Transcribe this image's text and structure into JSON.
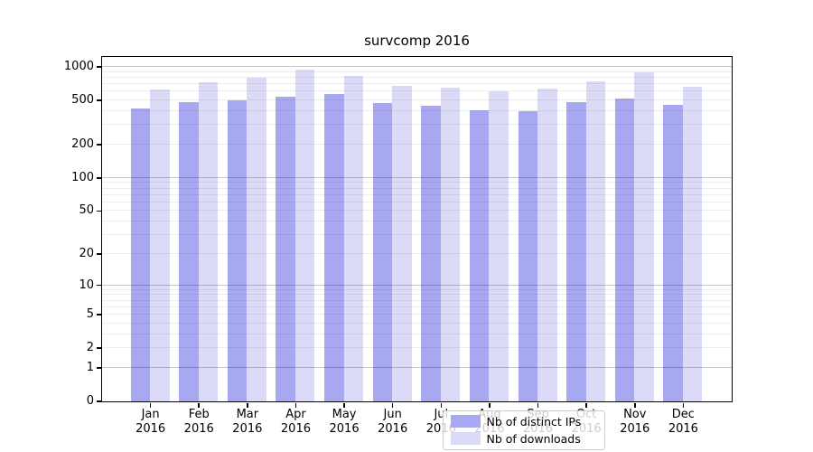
{
  "title": "survcomp 2016",
  "chart_data": {
    "type": "bar",
    "title": "survcomp 2016",
    "year_label": "2016",
    "categories": [
      "Jan",
      "Feb",
      "Mar",
      "Apr",
      "May",
      "Jun",
      "Jul",
      "Aug",
      "Sep",
      "Oct",
      "Nov",
      "Dec"
    ],
    "series": [
      {
        "name": "Nb of distinct IPs",
        "color": "#a7a7f2",
        "values": [
          418,
          482,
          495,
          533,
          565,
          473,
          445,
          405,
          398,
          480,
          511,
          448
        ]
      },
      {
        "name": "Nb of downloads",
        "color": "#dbdbf8",
        "values": [
          616,
          720,
          790,
          935,
          815,
          672,
          648,
          600,
          627,
          734,
          884,
          660
        ]
      }
    ],
    "yaxis": {
      "scale": "log1p",
      "min": 0,
      "max": 1000,
      "tick_labels": [
        0,
        1,
        2,
        5,
        10,
        20,
        50,
        100,
        200,
        500,
        1000
      ],
      "major_gridlines": [
        1,
        10,
        100,
        1000
      ],
      "minor_gridlines": [
        2,
        3,
        4,
        5,
        6,
        7,
        8,
        9,
        20,
        30,
        40,
        50,
        60,
        70,
        80,
        90,
        200,
        300,
        400,
        500,
        600,
        700,
        800,
        900
      ]
    },
    "legend": {
      "position": "bottom-center",
      "entries": [
        "Nb of distinct IPs",
        "Nb of downloads"
      ]
    },
    "colors": {
      "bar_ips": "#a7a7f2",
      "bar_downloads": "#dbdbf8",
      "major_grid": "rgba(0,0,0,0.22)",
      "minor_grid": "rgba(0,0,0,0.07)",
      "spine": "#000000",
      "text": "#000000",
      "background": "#ffffff"
    }
  }
}
